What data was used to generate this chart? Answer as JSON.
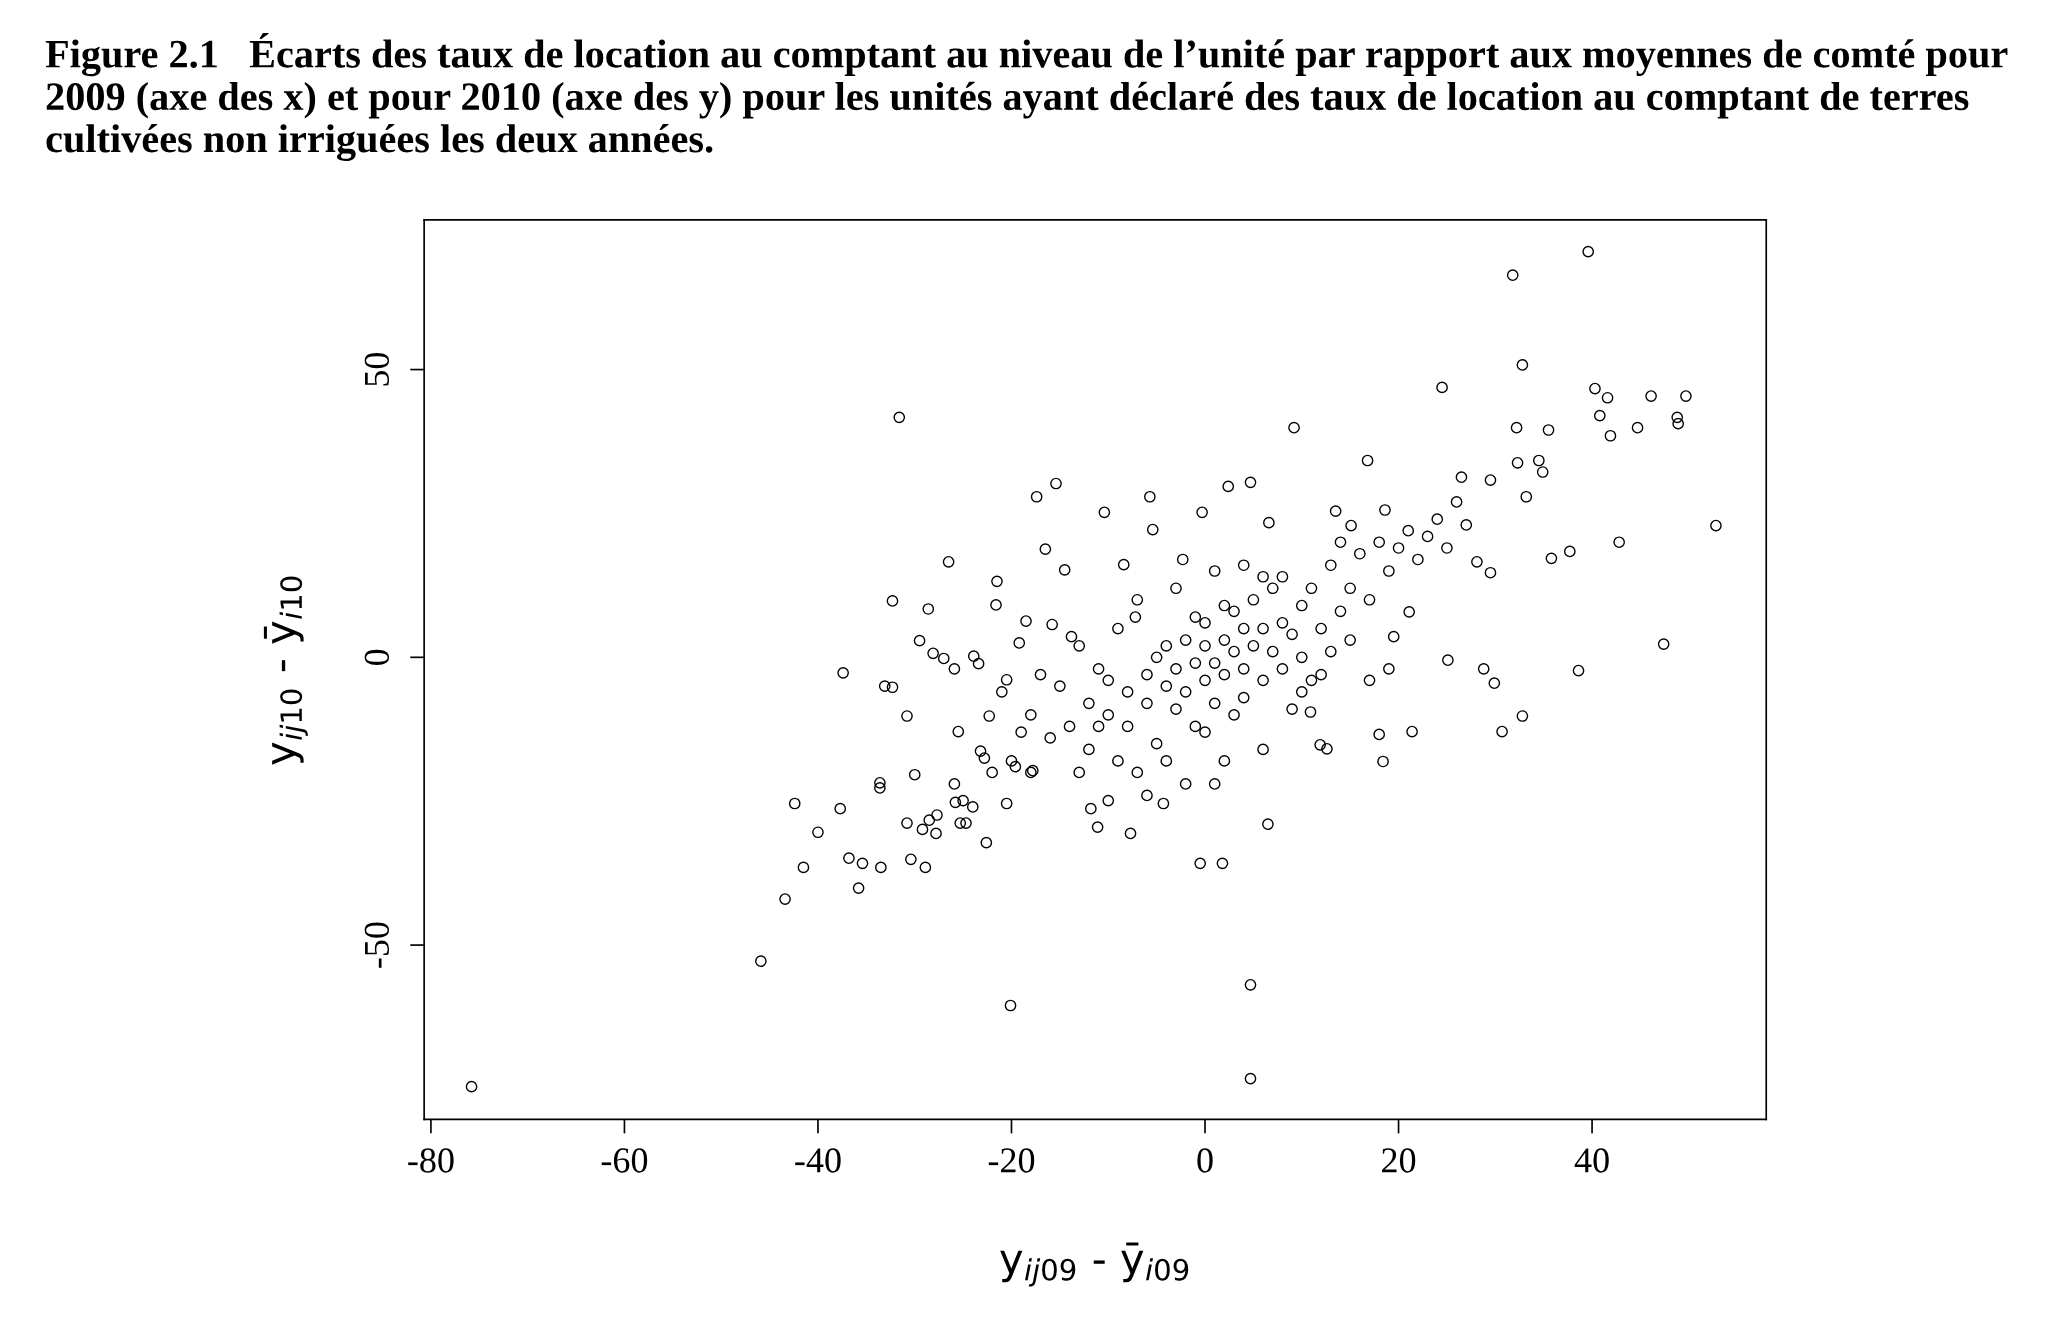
{
  "chart_data": {
    "type": "scatter",
    "title": "Figure 2.1   Écarts des taux de location au comptant au niveau de l’unité par rapport aux moyennes de comté pour 2009 (axe des x) et pour 2010 (axe des y) pour les unités ayant déclaré des taux de location au comptant de terres cultivées non irriguées les deux années.",
    "xlabel": "y$_{ij09}$ - ȳ$_{i09}$",
    "ylabel": "y$_{ij10}$ - ȳ$_{i10}$",
    "xlim": [
      -80.7,
      58
    ],
    "ylim": [
      -80.3,
      76
    ],
    "xticks": [
      -80,
      -60,
      -40,
      -20,
      0,
      20,
      40
    ],
    "yticks": [
      -50,
      0,
      50
    ],
    "grid": false,
    "marker": "circle",
    "series": [
      {
        "color": "#000000",
        "x": [
          -75.8,
          -45.9,
          -43.4,
          -42.4,
          -41.5,
          -40,
          -37.4,
          -37.7,
          -36.8,
          -35.8,
          -35.4,
          -33.6,
          -33.6,
          -33.5,
          -33.1,
          -32.3,
          -32.3,
          -31.6,
          -30.8,
          -30.8,
          -30.4,
          -30.0,
          -29.5,
          -29.2,
          -28.9,
          -28.6,
          -28.5,
          -28.1,
          -27.8,
          -27.7,
          -27.0,
          -26.5,
          -25.9,
          -25.5,
          -25.9,
          -25.8,
          -25.3,
          -25.0,
          -24.7,
          -23.9,
          -23.4,
          -23.2,
          -22.8,
          -22.6,
          -22.3,
          -21.6,
          -21.5,
          -20.5,
          -20.5,
          -20.1,
          -19.6,
          -19.2,
          -18.5,
          -17.8,
          -17.4,
          -16.5,
          -15.8,
          -15.4,
          -14.5,
          -13.8,
          -11.8,
          -11.1,
          -10.4,
          -10.0,
          -8.4,
          -7.7,
          -7.2,
          -5.7,
          -5.4,
          -4.3,
          -2.3,
          -0.5,
          -0.3,
          1.8,
          2.4,
          4.7,
          4.7,
          4.7,
          6.5,
          6.6,
          9.2,
          10.9,
          11.9,
          12.6,
          13.5,
          15.1,
          16.8,
          18.0,
          18.4,
          18.6,
          19.5,
          21.1,
          21.4,
          24.5,
          25.1,
          26.5,
          28.1,
          28.8,
          29.5,
          29.5,
          29.9,
          30.7,
          31.8,
          32.2,
          32.3,
          32.8,
          32.8,
          33.2,
          34.5,
          34.9,
          35.5,
          35.8,
          37.7,
          38.6,
          39.6,
          40.3,
          40.8,
          41.6,
          41.9,
          42.8,
          44.7,
          46.1,
          47.4,
          48.8,
          48.9,
          49.7,
          52.8,
          -12,
          -10,
          -10,
          -8,
          -8,
          -6,
          -6,
          -5,
          -4,
          -4,
          -3,
          -2,
          -2,
          -1,
          0,
          0,
          0,
          1,
          1,
          2,
          2,
          3,
          3,
          4,
          4,
          5,
          5,
          6,
          6,
          7,
          7,
          8,
          8,
          9,
          10,
          10,
          11,
          12,
          13,
          14,
          15,
          16,
          17,
          18,
          19,
          20,
          21,
          22,
          23,
          24,
          25,
          26,
          27,
          -14,
          -15,
          -16,
          -18,
          -18,
          -17,
          -20,
          -13,
          -12,
          -11,
          -9,
          -7,
          -5,
          -3,
          -1,
          1,
          2,
          3,
          4,
          6,
          8,
          10,
          12,
          14,
          15,
          17,
          19,
          -7,
          -9,
          -11,
          -13,
          -21,
          -19,
          -22,
          -24,
          -3,
          -1,
          0,
          2,
          4,
          6,
          9,
          11,
          13,
          -4,
          -6,
          -2,
          1
        ],
        "values": [
          -74.6,
          -52.8,
          -42.0,
          -25.4,
          -36.5,
          -30.4,
          -2.7,
          -26.3,
          -34.9,
          -40.1,
          -35.8,
          -21.8,
          -22.7,
          -36.5,
          -5.0,
          -5.2,
          9.8,
          41.7,
          -10.2,
          -28.8,
          -35.1,
          -20.4,
          2.9,
          -29.9,
          -36.5,
          8.4,
          -28.3,
          0.7,
          -30.6,
          -27.4,
          -0.2,
          16.6,
          -2.0,
          -12.9,
          -22.0,
          -25.2,
          -28.8,
          -24.9,
          -28.8,
          0.2,
          -1.1,
          -16.3,
          -17.5,
          -32.2,
          -10.2,
          9.1,
          13.2,
          -3.9,
          -25.4,
          -60.5,
          -19.0,
          2.5,
          6.3,
          -19.7,
          27.9,
          18.8,
          5.7,
          30.2,
          15.2,
          3.6,
          -26.3,
          -29.5,
          25.2,
          -24.9,
          16.1,
          -30.6,
          7.0,
          27.9,
          22.2,
          -25.4,
          17.0,
          -35.8,
          25.2,
          -35.8,
          29.7,
          30.4,
          -56.9,
          -73.2,
          -29.0,
          23.4,
          39.9,
          -9.5,
          -15.2,
          -15.9,
          25.4,
          22.9,
          34.2,
          -13.4,
          -18.1,
          25.6,
          3.6,
          7.9,
          -12.9,
          46.9,
          -0.5,
          31.3,
          16.6,
          -2.0,
          30.8,
          14.7,
          -4.5,
          -12.9,
          66.4,
          39.9,
          33.8,
          50.8,
          -10.2,
          27.9,
          34.2,
          32.2,
          39.5,
          17.2,
          18.4,
          -2.3,
          70.5,
          46.7,
          42.0,
          45.1,
          38.5,
          20.0,
          39.9,
          45.4,
          2.3,
          41.7,
          40.6,
          45.4,
          22.9,
          -8,
          -10,
          -4,
          -6,
          -12,
          -3,
          -8,
          0,
          -5,
          2,
          -2,
          -6,
          3,
          -1,
          -4,
          2,
          6,
          -1,
          -8,
          3,
          -3,
          1,
          8,
          -2,
          5,
          2,
          10,
          -4,
          5,
          1,
          12,
          6,
          -2,
          4,
          9,
          0,
          12,
          5,
          16,
          8,
          12,
          18,
          10,
          20,
          15,
          19,
          22,
          17,
          21,
          24,
          19,
          27,
          23,
          -12,
          -5,
          -14,
          -10,
          -20,
          -3,
          -18,
          2,
          -16,
          -2,
          5,
          10,
          -15,
          12,
          -12,
          15,
          -18,
          -10,
          16,
          -16,
          14,
          -6,
          -3,
          20,
          3,
          -4,
          -2,
          -20,
          -18,
          -12,
          -20,
          -6,
          -13,
          -20,
          -26,
          -9,
          7,
          -13,
          9,
          -7,
          14,
          -9,
          -4,
          1,
          -18,
          -24,
          -22,
          -22
        ]
      }
    ]
  }
}
